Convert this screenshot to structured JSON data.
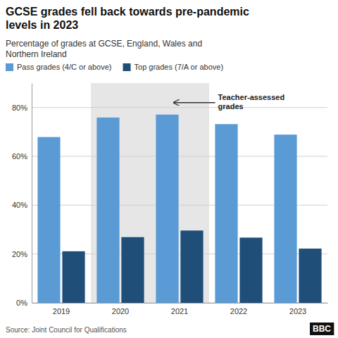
{
  "chart_data": {
    "type": "bar",
    "title": "GCSE grades fell back towards pre-pandemic\nlevels in 2023",
    "subtitle": "Percentage of grades at GCSE, England, Wales and\nNorthern Ireland",
    "categories": [
      "2019",
      "2020",
      "2021",
      "2022",
      "2023"
    ],
    "series": [
      {
        "name": "Pass grades (4/C or above)",
        "color": "#5b9bd5",
        "values": [
          67.9,
          75.9,
          77.1,
          73.2,
          68.9
        ]
      },
      {
        "name": "Top grades (7/A or above)",
        "color": "#1f4e79",
        "values": [
          21.1,
          26.9,
          29.6,
          26.7,
          22.2
        ]
      }
    ],
    "ylim": [
      0,
      90
    ],
    "yticks": [
      {
        "value": 0,
        "label": "0%"
      },
      {
        "value": 20,
        "label": "20%"
      },
      {
        "value": 40,
        "label": "40%"
      },
      {
        "value": 60,
        "label": "60%"
      },
      {
        "value": 80,
        "label": "80%"
      }
    ],
    "grid": true,
    "legend": "top",
    "annotation": "Teacher-assessed\ngrades",
    "source": "Source: Joint Council for Qualifications",
    "credit": "BBC"
  }
}
